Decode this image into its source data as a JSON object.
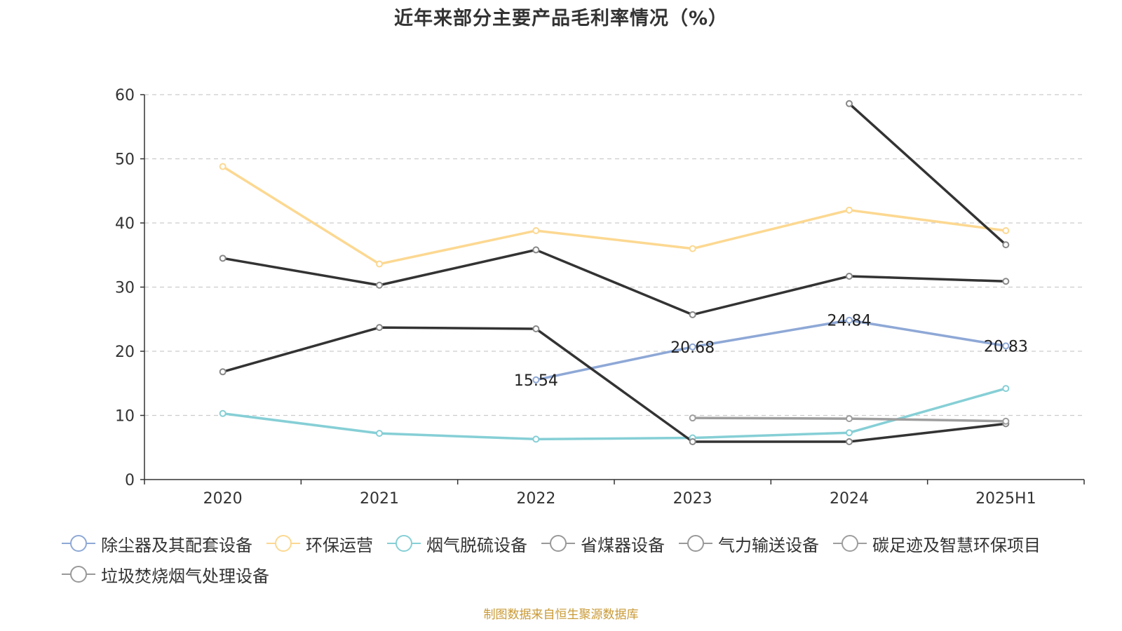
{
  "title": "近年来部分主要产品毛利率情况（%）",
  "source": "制图数据来自恒生聚源数据库",
  "chart_data": {
    "type": "line",
    "title": "近年来部分主要产品毛利率情况（%）",
    "categories": [
      "2020",
      "2021",
      "2022",
      "2023",
      "2024",
      "2025H1"
    ],
    "ylim": [
      0,
      60
    ],
    "yticks": [
      0,
      10,
      20,
      30,
      40,
      50,
      60
    ],
    "grid": true,
    "legend_position": "bottom",
    "series": [
      {
        "name": "除尘器及其配套设备",
        "color": "#8ea8d6",
        "values": [
          null,
          null,
          15.54,
          20.68,
          24.84,
          20.83
        ],
        "labels": [
          "",
          "",
          "15.54",
          "20.68",
          "24.84",
          "20.83"
        ]
      },
      {
        "name": "环保运营",
        "color": "#fcd891",
        "values": [
          48.8,
          33.6,
          38.8,
          36.0,
          42.0,
          38.8
        ]
      },
      {
        "name": "烟气脱硫设备",
        "color": "#86cfd6",
        "values": [
          10.3,
          7.2,
          6.3,
          6.5,
          7.3,
          14.2
        ]
      },
      {
        "name": "省煤器设备",
        "color": "#333333",
        "values": [
          34.5,
          30.3,
          35.8,
          25.7,
          31.7,
          30.9
        ]
      },
      {
        "name": "气力输送设备",
        "color": "#333333",
        "values": [
          16.8,
          23.7,
          23.5,
          5.9,
          5.9,
          8.7
        ]
      },
      {
        "name": "碳足迹及智慧环保项目",
        "color": "#9e9e9e",
        "values": [
          null,
          null,
          null,
          9.6,
          9.5,
          9.1
        ]
      },
      {
        "name": "垃圾焚烧烟气处理设备",
        "color": "#333333",
        "values": [
          null,
          null,
          null,
          null,
          58.6,
          36.6
        ]
      }
    ]
  }
}
